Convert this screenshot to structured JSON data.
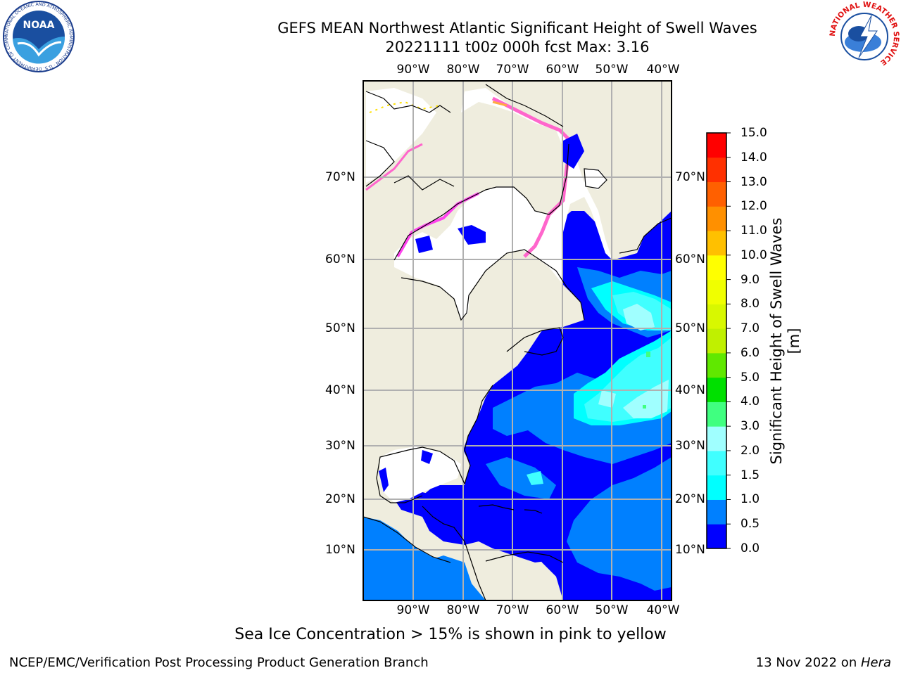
{
  "header": {
    "title_line1": "GEFS MEAN Northwest Atlantic Significant Height of Swell Waves",
    "title_line2": "20221111 t00z 000h fcst   Max: 3.16"
  },
  "logos": {
    "left_logo_text": "NOAA",
    "left_logo_ring_text": "NATIONAL OCEANIC AND ATMOSPHERIC ADMINISTRATION · U.S. DEPARTMENT OF COMMERCE",
    "right_logo_ring_text": "NATIONAL WEATHER SERVICE"
  },
  "map": {
    "lon_labels": [
      "90°W",
      "80°W",
      "70°W",
      "60°W",
      "50°W",
      "40°W"
    ],
    "lat_labels": [
      "70°N",
      "60°N",
      "50°N",
      "40°N",
      "30°N",
      "20°N",
      "10°N"
    ],
    "colors": {
      "land": "#efedde",
      "ice_free_unresolved": "#ffffff",
      "sea_ice_low": "#ff66cc",
      "sea_ice_high": "#ffe000",
      "grid": "#b0b0b0"
    }
  },
  "colorbar": {
    "label": "Significant Height of Swell Waves [m]",
    "ticks": [
      "0.0",
      "0.5",
      "1.0",
      "1.5",
      "2.0",
      "3.0",
      "4.0",
      "5.0",
      "6.0",
      "7.0",
      "8.0",
      "9.0",
      "10.0",
      "11.0",
      "12.0",
      "13.0",
      "14.0",
      "15.0"
    ],
    "bins": [
      {
        "from": 0.0,
        "to": 0.5,
        "color": "#0000ff"
      },
      {
        "from": 0.5,
        "to": 1.0,
        "color": "#0080ff"
      },
      {
        "from": 1.0,
        "to": 1.5,
        "color": "#00ffff"
      },
      {
        "from": 1.5,
        "to": 2.0,
        "color": "#40ffff"
      },
      {
        "from": 2.0,
        "to": 3.0,
        "color": "#a0ffff"
      },
      {
        "from": 3.0,
        "to": 4.0,
        "color": "#40ff80"
      },
      {
        "from": 4.0,
        "to": 5.0,
        "color": "#00e000"
      },
      {
        "from": 5.0,
        "to": 6.0,
        "color": "#60e800"
      },
      {
        "from": 6.0,
        "to": 7.0,
        "color": "#c0f000"
      },
      {
        "from": 7.0,
        "to": 8.0,
        "color": "#d8f800"
      },
      {
        "from": 8.0,
        "to": 9.0,
        "color": "#f0ff00"
      },
      {
        "from": 9.0,
        "to": 10.0,
        "color": "#ffff00"
      },
      {
        "from": 10.0,
        "to": 11.0,
        "color": "#ffc000"
      },
      {
        "from": 11.0,
        "to": 12.0,
        "color": "#ff9000"
      },
      {
        "from": 12.0,
        "to": 13.0,
        "color": "#ff6000"
      },
      {
        "from": 13.0,
        "to": 14.0,
        "color": "#ff3000"
      },
      {
        "from": 14.0,
        "to": 15.0,
        "color": "#ff0000"
      }
    ]
  },
  "footer": {
    "note": "Sea Ice Concentration > 15% is shown in pink to yellow",
    "credit": "NCEP/EMC/Verification Post Processing Product Generation Branch",
    "date_prefix": "13 Nov 2022 on ",
    "date_host": "Hera"
  }
}
